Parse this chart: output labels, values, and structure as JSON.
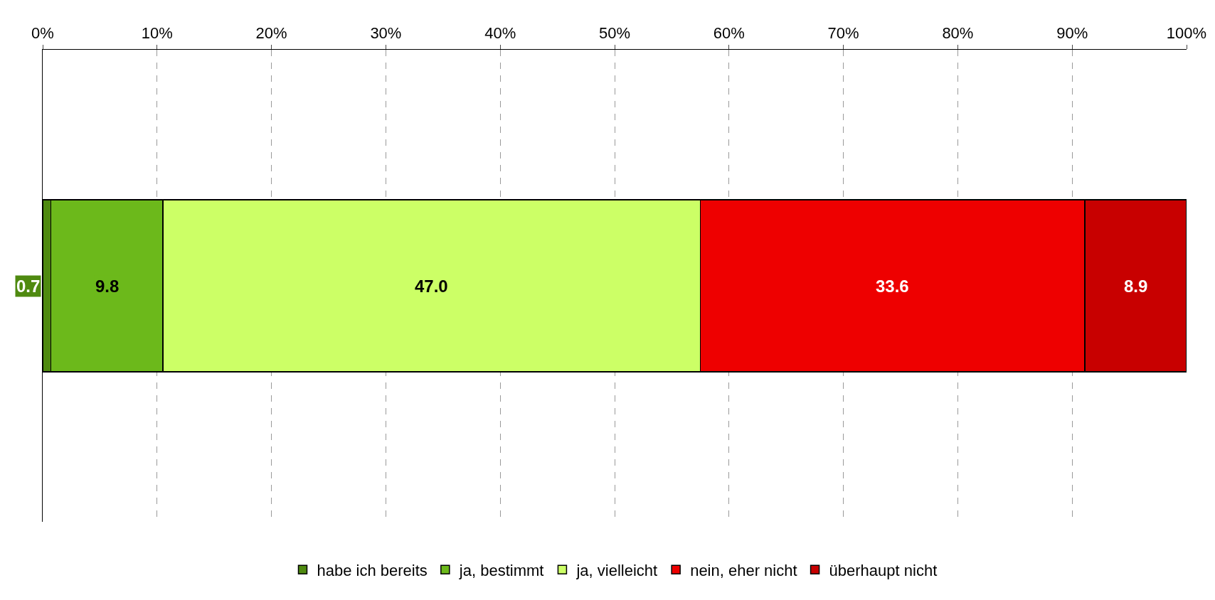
{
  "chart_data": {
    "type": "bar",
    "orientation": "horizontal",
    "stacked": true,
    "categories": [
      null
    ],
    "series": [
      {
        "name": "habe ich bereits",
        "color": "#4f8a10",
        "values": [
          0.7
        ],
        "value_labels": [
          "0.7"
        ]
      },
      {
        "name": "ja, bestimmt",
        "color": "#6cb91b",
        "values": [
          9.8
        ],
        "value_labels": [
          "9.8"
        ]
      },
      {
        "name": "ja, vielleicht",
        "color": "#ccff66",
        "values": [
          47.0
        ],
        "value_labels": [
          "47.0"
        ]
      },
      {
        "name": "nein, eher nicht",
        "color": "#ee0000",
        "values": [
          33.6
        ],
        "value_labels": [
          "33.6"
        ]
      },
      {
        "name": "überhaupt nicht",
        "color": "#c80000",
        "values": [
          8.9
        ],
        "value_labels": [
          "8.9"
        ]
      }
    ],
    "xlim": [
      0,
      100
    ],
    "xticks": [
      {
        "value": 0,
        "label": "0%"
      },
      {
        "value": 10,
        "label": "10%"
      },
      {
        "value": 20,
        "label": "20%"
      },
      {
        "value": 30,
        "label": "30%"
      },
      {
        "value": 40,
        "label": "40%"
      },
      {
        "value": 50,
        "label": "50%"
      },
      {
        "value": 60,
        "label": "60%"
      },
      {
        "value": 70,
        "label": "70%"
      },
      {
        "value": 80,
        "label": "80%"
      },
      {
        "value": 90,
        "label": "90%"
      },
      {
        "value": 100,
        "label": "100%"
      }
    ],
    "grid": "x",
    "legend": "bottom"
  }
}
